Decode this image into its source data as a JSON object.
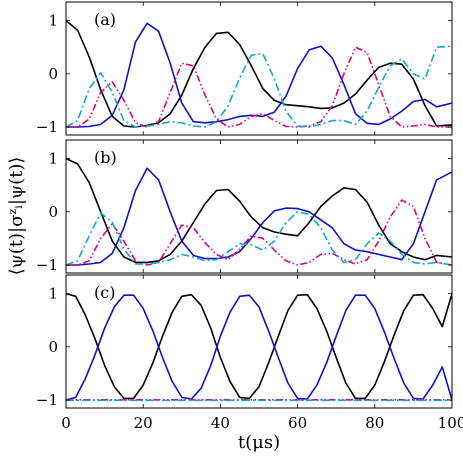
{
  "chart_data": {
    "type": "line",
    "layout": "three vertically stacked panels sharing x-axis",
    "xlabel": "t(μs)",
    "ylabel": "⟨ψ(t)|σᶻᵢ|ψ(t)⟩",
    "xlim": [
      0,
      100
    ],
    "ylim": [
      -1.15,
      1.35
    ],
    "xticks": [
      "0",
      "20",
      "40",
      "60",
      "80",
      "100"
    ],
    "yticks": [
      "1",
      "0",
      "−1"
    ],
    "grid": false,
    "legend": "none",
    "series_styles": [
      {
        "color": "#000000",
        "dash": "solid"
      },
      {
        "color": "#1010cc",
        "dash": "solid"
      },
      {
        "color": "#e0007a",
        "dash": "dash-dot-dot"
      },
      {
        "color": "#11a8cc",
        "dash": "dash-dot"
      }
    ],
    "panels": [
      {
        "label": "(a)",
        "series": [
          {
            "x": [
              0,
              3,
              6,
              9,
              12,
              15,
              18,
              21,
              24,
              27,
              30,
              33,
              36,
              39,
              42,
              45,
              48,
              51,
              54,
              57,
              60,
              63,
              66,
              69,
              72,
              75,
              78,
              81,
              84,
              87,
              90,
              93,
              96,
              100
            ],
            "values": [
              1.0,
              0.82,
              0.32,
              -0.3,
              -0.8,
              -0.98,
              -1.0,
              -0.97,
              -0.92,
              -0.75,
              -0.4,
              0.1,
              0.5,
              0.76,
              0.78,
              0.55,
              0.15,
              -0.28,
              -0.5,
              -0.58,
              -0.6,
              -0.62,
              -0.65,
              -0.64,
              -0.55,
              -0.38,
              -0.12,
              0.12,
              0.2,
              0.18,
              -0.1,
              -0.6,
              -0.98,
              -0.96
            ]
          },
          {
            "x": [
              0,
              3,
              6,
              9,
              12,
              15,
              18,
              21,
              24,
              27,
              30,
              33,
              36,
              39,
              42,
              45,
              48,
              51,
              54,
              57,
              60,
              63,
              66,
              69,
              72,
              75,
              78,
              81,
              84,
              87,
              90,
              93,
              96,
              100
            ],
            "values": [
              -1.0,
              -1.0,
              -0.99,
              -0.95,
              -0.78,
              -0.3,
              0.6,
              0.95,
              0.8,
              0.2,
              -0.55,
              -0.9,
              -0.92,
              -0.9,
              -0.86,
              -0.8,
              -0.78,
              -0.8,
              -0.72,
              -0.42,
              0.1,
              0.45,
              0.52,
              0.3,
              -0.2,
              -0.75,
              -0.93,
              -0.95,
              -0.85,
              -0.7,
              -0.52,
              -0.48,
              -0.62,
              -0.55
            ]
          },
          {
            "x": [
              0,
              3,
              6,
              9,
              12,
              15,
              18,
              21,
              24,
              27,
              30,
              33,
              36,
              39,
              42,
              45,
              48,
              51,
              54,
              57,
              60,
              63,
              66,
              69,
              72,
              75,
              78,
              81,
              84,
              87,
              90,
              93,
              96,
              100
            ],
            "values": [
              -1.0,
              -1.0,
              -0.85,
              -0.35,
              -0.15,
              -0.5,
              -0.92,
              -1.0,
              -0.9,
              -0.35,
              0.2,
              0.15,
              -0.4,
              -0.85,
              -1.0,
              -0.95,
              -0.8,
              -0.75,
              -0.88,
              -0.99,
              -1.0,
              -0.98,
              -0.9,
              -0.6,
              0.0,
              0.5,
              0.4,
              -0.2,
              -0.8,
              -1.0,
              -0.98,
              -0.95,
              -1.0,
              -1.0
            ]
          },
          {
            "x": [
              0,
              3,
              6,
              9,
              12,
              15,
              18,
              21,
              24,
              27,
              30,
              33,
              36,
              39,
              42,
              45,
              48,
              51,
              54,
              57,
              60,
              63,
              66,
              69,
              72,
              75,
              78,
              81,
              84,
              87,
              90,
              93,
              96,
              100
            ],
            "values": [
              -1.0,
              -0.88,
              -0.28,
              0.02,
              -0.35,
              -0.88,
              -1.0,
              -0.98,
              -0.95,
              -0.9,
              -0.92,
              -0.98,
              -1.0,
              -0.9,
              -0.6,
              -0.08,
              0.35,
              0.38,
              -0.1,
              -0.7,
              -0.98,
              -1.0,
              -0.95,
              -0.88,
              -0.88,
              -0.95,
              -0.7,
              -0.25,
              0.15,
              0.28,
              0.0,
              -0.1,
              0.5,
              0.52
            ]
          }
        ]
      },
      {
        "label": "(b)",
        "series": [
          {
            "x": [
              0,
              3,
              6,
              9,
              12,
              15,
              18,
              21,
              24,
              27,
              30,
              33,
              36,
              39,
              42,
              45,
              48,
              51,
              54,
              57,
              60,
              63,
              66,
              69,
              72,
              75,
              78,
              81,
              84,
              87,
              90,
              93,
              96,
              100
            ],
            "values": [
              1.0,
              0.9,
              0.55,
              0.0,
              -0.55,
              -0.85,
              -0.95,
              -0.95,
              -0.92,
              -0.8,
              -0.55,
              -0.2,
              0.15,
              0.4,
              0.42,
              0.2,
              -0.1,
              -0.3,
              -0.38,
              -0.42,
              -0.45,
              -0.2,
              0.1,
              0.3,
              0.45,
              0.42,
              0.18,
              -0.25,
              -0.6,
              -0.75,
              -0.85,
              -0.9,
              -0.82,
              -0.85
            ]
          },
          {
            "x": [
              0,
              3,
              6,
              9,
              12,
              15,
              18,
              21,
              24,
              27,
              30,
              33,
              36,
              39,
              42,
              45,
              48,
              51,
              54,
              57,
              60,
              63,
              66,
              69,
              72,
              75,
              78,
              81,
              84,
              87,
              90,
              93,
              96,
              100
            ],
            "values": [
              -1.0,
              -1.0,
              -0.98,
              -0.95,
              -0.78,
              -0.3,
              0.4,
              0.82,
              0.6,
              0.0,
              -0.55,
              -0.82,
              -0.88,
              -0.88,
              -0.85,
              -0.75,
              -0.5,
              -0.2,
              0.02,
              0.07,
              0.06,
              0.0,
              -0.15,
              -0.3,
              -0.6,
              -0.72,
              -0.75,
              -0.8,
              -0.85,
              -0.9,
              -0.6,
              0.0,
              0.6,
              0.75
            ]
          },
          {
            "x": [
              0,
              3,
              6,
              9,
              12,
              15,
              18,
              21,
              24,
              27,
              30,
              33,
              36,
              39,
              42,
              45,
              48,
              51,
              54,
              57,
              60,
              63,
              66,
              69,
              72,
              75,
              78,
              81,
              84,
              87,
              90,
              93,
              96,
              100
            ],
            "values": [
              -1.0,
              -1.0,
              -0.92,
              -0.5,
              -0.22,
              -0.55,
              -0.92,
              -1.0,
              -0.95,
              -0.6,
              -0.25,
              -0.3,
              -0.58,
              -0.8,
              -0.9,
              -0.7,
              -0.45,
              -0.5,
              -0.72,
              -0.92,
              -1.0,
              -0.95,
              -0.8,
              -0.78,
              -0.9,
              -0.98,
              -0.9,
              -0.55,
              -0.1,
              0.22,
              0.1,
              -0.5,
              -0.95,
              -1.0
            ]
          },
          {
            "x": [
              0,
              3,
              6,
              9,
              12,
              15,
              18,
              21,
              24,
              27,
              30,
              33,
              36,
              39,
              42,
              45,
              48,
              51,
              54,
              57,
              60,
              63,
              66,
              69,
              72,
              75,
              78,
              81,
              84,
              87,
              90,
              93,
              96,
              100
            ],
            "values": [
              -1.0,
              -0.92,
              -0.45,
              -0.02,
              -0.2,
              -0.7,
              -0.98,
              -0.98,
              -0.95,
              -0.9,
              -0.8,
              -0.85,
              -0.92,
              -0.9,
              -0.75,
              -0.6,
              -0.62,
              -0.72,
              -0.55,
              -0.2,
              0.0,
              -0.05,
              -0.3,
              -0.72,
              -0.95,
              -0.9,
              -0.6,
              -0.4,
              -0.55,
              -0.8,
              -0.95,
              -0.98,
              -0.95,
              -1.0
            ]
          }
        ]
      },
      {
        "label": "(c)",
        "series": [
          {
            "x": [
              0,
              2.5,
              5,
              7.5,
              10,
              12.5,
              15,
              17.5,
              20,
              22.5,
              25,
              27.5,
              30,
              32.5,
              35,
              37.5,
              40,
              42.5,
              45,
              47.5,
              50,
              52.5,
              55,
              57.5,
              60,
              62.5,
              65,
              67.5,
              70,
              72.5,
              75,
              77.5,
              80,
              82.5,
              85,
              87.5,
              90,
              92.5,
              95,
              97.5,
              100
            ],
            "values": [
              1.0,
              0.95,
              0.6,
              0.15,
              -0.35,
              -0.75,
              -0.97,
              -0.97,
              -0.72,
              -0.3,
              0.2,
              0.65,
              0.95,
              0.98,
              0.78,
              0.35,
              -0.2,
              -0.65,
              -0.95,
              -0.97,
              -0.75,
              -0.3,
              0.2,
              0.68,
              0.97,
              0.98,
              0.72,
              0.3,
              -0.2,
              -0.68,
              -0.97,
              -0.97,
              -0.72,
              -0.28,
              0.22,
              0.68,
              0.97,
              0.98,
              0.72,
              0.38,
              1.0
            ]
          },
          {
            "x": [
              0,
              2.5,
              5,
              7.5,
              10,
              12.5,
              15,
              17.5,
              20,
              22.5,
              25,
              27.5,
              30,
              32.5,
              35,
              37.5,
              40,
              42.5,
              45,
              47.5,
              50,
              52.5,
              55,
              57.5,
              60,
              62.5,
              65,
              67.5,
              70,
              72.5,
              75,
              77.5,
              80,
              82.5,
              85,
              87.5,
              90,
              92.5,
              95,
              97.5,
              100
            ],
            "values": [
              -1.0,
              -0.95,
              -0.6,
              -0.15,
              0.35,
              0.75,
              0.97,
              0.97,
              0.72,
              0.3,
              -0.2,
              -0.65,
              -0.95,
              -0.98,
              -0.78,
              -0.35,
              0.2,
              0.65,
              0.95,
              0.97,
              0.75,
              0.3,
              -0.2,
              -0.68,
              -0.97,
              -0.98,
              -0.72,
              -0.3,
              0.2,
              0.68,
              0.97,
              0.97,
              0.72,
              0.28,
              -0.22,
              -0.68,
              -0.97,
              -0.98,
              -0.72,
              -0.38,
              -1.0
            ]
          },
          {
            "x": [
              0,
              100
            ],
            "values": [
              -0.995,
              -0.995
            ]
          },
          {
            "x": [
              0,
              100
            ],
            "values": [
              -1.005,
              -1.005
            ]
          }
        ]
      }
    ]
  }
}
